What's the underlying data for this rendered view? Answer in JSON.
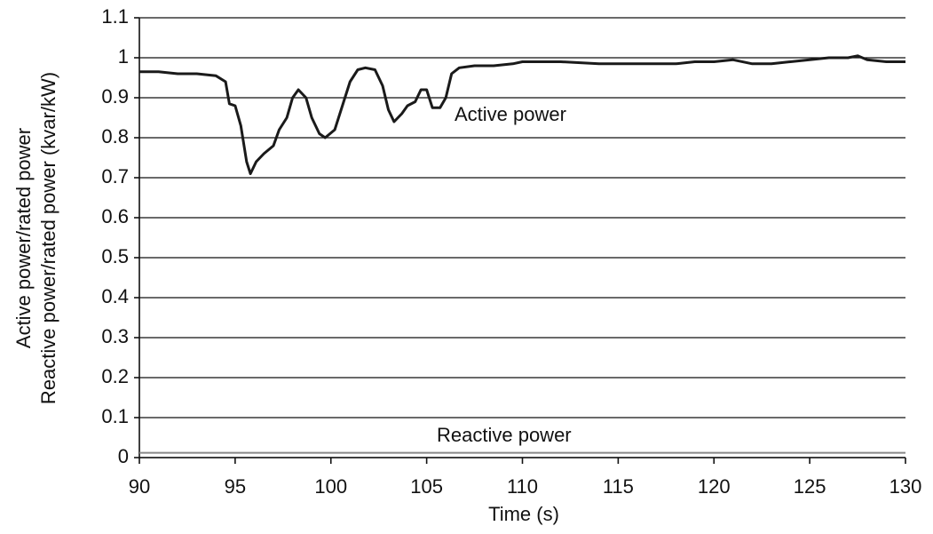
{
  "chart_data": {
    "type": "line",
    "xlabel": "Time (s)",
    "ylabel": [
      "Active power/rated power",
      "Reactive power/rated power (kvar/kW)"
    ],
    "xlim": [
      90,
      130
    ],
    "xticks": [
      90,
      95,
      100,
      105,
      110,
      115,
      120,
      125,
      130
    ],
    "ylim": [
      0,
      1.1
    ],
    "yticks": [
      0,
      0.1,
      0.2,
      0.3,
      0.4,
      0.5,
      0.6,
      0.7,
      0.8,
      0.9,
      1,
      1.1
    ],
    "grid": true,
    "series": [
      {
        "name": "Active power",
        "color": "#1a1a1a",
        "x": [
          90,
          91,
          92,
          93,
          94,
          94.5,
          94.7,
          95,
          95.3,
          95.6,
          95.8,
          96.1,
          96.5,
          97,
          97.3,
          97.7,
          98,
          98.3,
          98.7,
          99,
          99.4,
          99.7,
          100.2,
          100.6,
          101,
          101.4,
          101.8,
          102.3,
          102.7,
          103,
          103.3,
          103.7,
          104,
          104.4,
          104.7,
          105,
          105.3,
          105.7,
          106,
          106.3,
          106.7,
          107.5,
          108.5,
          109.5,
          110,
          112,
          114,
          116,
          118,
          119,
          120,
          121,
          122,
          123,
          124,
          125,
          126,
          127,
          127.5,
          128,
          129,
          130
        ],
        "values": [
          0.965,
          0.965,
          0.96,
          0.96,
          0.955,
          0.94,
          0.885,
          0.88,
          0.83,
          0.74,
          0.71,
          0.74,
          0.76,
          0.78,
          0.82,
          0.85,
          0.9,
          0.92,
          0.9,
          0.85,
          0.81,
          0.8,
          0.82,
          0.88,
          0.94,
          0.97,
          0.975,
          0.97,
          0.93,
          0.87,
          0.84,
          0.86,
          0.88,
          0.89,
          0.92,
          0.92,
          0.875,
          0.875,
          0.9,
          0.96,
          0.975,
          0.98,
          0.98,
          0.985,
          0.99,
          0.99,
          0.985,
          0.985,
          0.985,
          0.99,
          0.99,
          0.995,
          0.985,
          0.985,
          0.99,
          0.995,
          1.0,
          1.0,
          1.005,
          0.995,
          0.99,
          0.99
        ]
      },
      {
        "name": "Reactive power",
        "color": "#888888",
        "x": [
          90,
          95,
          100,
          105,
          110,
          115,
          120,
          125,
          130
        ],
        "values": [
          0.012,
          0.012,
          0.012,
          0.012,
          0.012,
          0.012,
          0.012,
          0.012,
          0.012
        ]
      }
    ]
  }
}
